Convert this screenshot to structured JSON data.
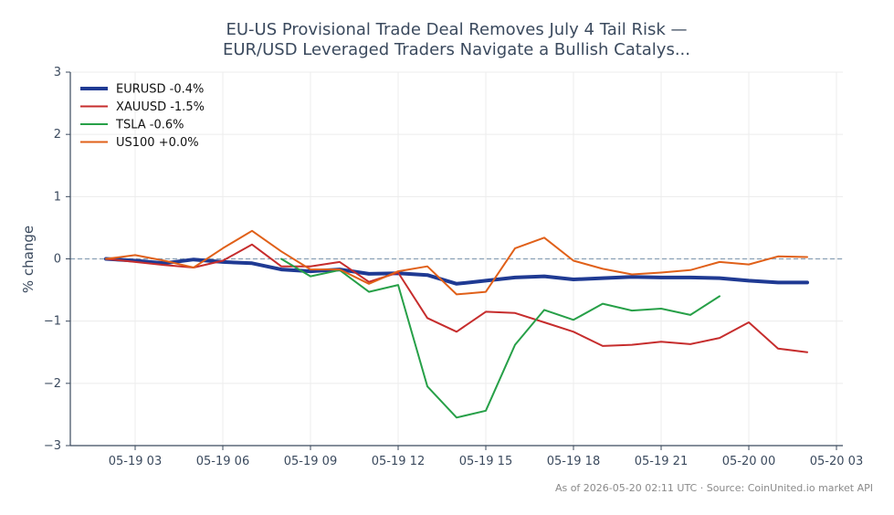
{
  "chart_data": {
    "type": "line",
    "title_lines": [
      "EU-US Provisional Trade Deal Removes July 4 Tail Risk —",
      "EUR/USD Leveraged Traders Navigate a Bullish Catalys..."
    ],
    "ylabel": "% change",
    "xlabel": "",
    "ylim": [
      -3,
      3
    ],
    "y_ticks": [
      3,
      2,
      1,
      0,
      -1,
      -2,
      -3
    ],
    "y_tick_labels": [
      "3",
      "2",
      "1",
      "0",
      "−1",
      "−2",
      "−3"
    ],
    "xlim": [
      1,
      25
    ],
    "x_ticks": [
      3,
      6,
      9,
      12,
      15,
      18,
      21,
      24,
      27
    ],
    "x_tick_labels": [
      "05-19 03",
      "05-19 06",
      "05-19 09",
      "05-19 12",
      "05-19 15",
      "05-19 18",
      "05-19 21",
      "05-20 00",
      "05-20 03"
    ],
    "grid": true,
    "zero_line": true,
    "legend_position": "top-left",
    "series": [
      {
        "name": "EURUSD -0.4%",
        "color": "#1f3a93",
        "width": 4,
        "x": [
          2,
          3,
          4,
          5,
          6,
          7,
          8,
          9,
          10,
          11,
          12,
          13,
          14,
          15,
          16,
          17,
          18,
          19,
          20,
          21,
          22,
          23,
          24,
          25,
          26
        ],
        "y": [
          0.0,
          -0.03,
          -0.07,
          -0.01,
          -0.05,
          -0.07,
          -0.17,
          -0.2,
          -0.17,
          -0.24,
          -0.23,
          -0.26,
          -0.4,
          -0.35,
          -0.3,
          -0.28,
          -0.33,
          -0.31,
          -0.29,
          -0.3,
          -0.3,
          -0.31,
          -0.35,
          -0.38,
          -0.38
        ]
      },
      {
        "name": "XAUUSD -1.5%",
        "color": "#c62d2d",
        "width": 2,
        "x": [
          2,
          3,
          4,
          5,
          6,
          7,
          8,
          9,
          10,
          11,
          12,
          13,
          14,
          15,
          16,
          17,
          18,
          19,
          20,
          21,
          22,
          23,
          24,
          25,
          26
        ],
        "y": [
          0.0,
          -0.05,
          -0.1,
          -0.14,
          -0.03,
          0.23,
          -0.12,
          -0.12,
          -0.05,
          -0.37,
          -0.22,
          -0.95,
          -1.17,
          -0.85,
          -0.87,
          -1.02,
          -1.17,
          -1.4,
          -1.38,
          -1.33,
          -1.37,
          -1.27,
          -1.02,
          -1.44,
          -1.5
        ]
      },
      {
        "name": "TSLA -0.6%",
        "color": "#27a048",
        "width": 2,
        "x": [
          8,
          9,
          10,
          11,
          12,
          13,
          14,
          15,
          16,
          17,
          18,
          19,
          20,
          21,
          22,
          23
        ],
        "y": [
          0.0,
          -0.28,
          -0.18,
          -0.53,
          -0.42,
          -2.05,
          -2.55,
          -2.44,
          -1.38,
          -0.82,
          -0.98,
          -0.72,
          -0.83,
          -0.8,
          -0.9,
          -0.6
        ]
      },
      {
        "name": "US100 +0.0%",
        "color": "#e06019",
        "width": 2,
        "x": [
          2,
          3,
          4,
          5,
          6,
          7,
          8,
          9,
          10,
          11,
          12,
          13,
          14,
          15,
          16,
          17,
          18,
          19,
          20,
          21,
          22,
          23,
          24,
          25,
          26
        ],
        "y": [
          0.0,
          0.06,
          -0.03,
          -0.14,
          0.17,
          0.45,
          0.12,
          -0.17,
          -0.17,
          -0.4,
          -0.2,
          -0.12,
          -0.57,
          -0.53,
          0.17,
          0.34,
          -0.03,
          -0.16,
          -0.25,
          -0.22,
          -0.18,
          -0.05,
          -0.09,
          0.04,
          0.03
        ]
      }
    ],
    "footer": "As of 2026-05-20 02:11 UTC · Source: CoinUnited.io market API"
  },
  "colors": {
    "axis": "#3b4a5e",
    "grid": "#ececec",
    "zero_line": "#8aa0b5",
    "footer": "#8a8a8a"
  }
}
